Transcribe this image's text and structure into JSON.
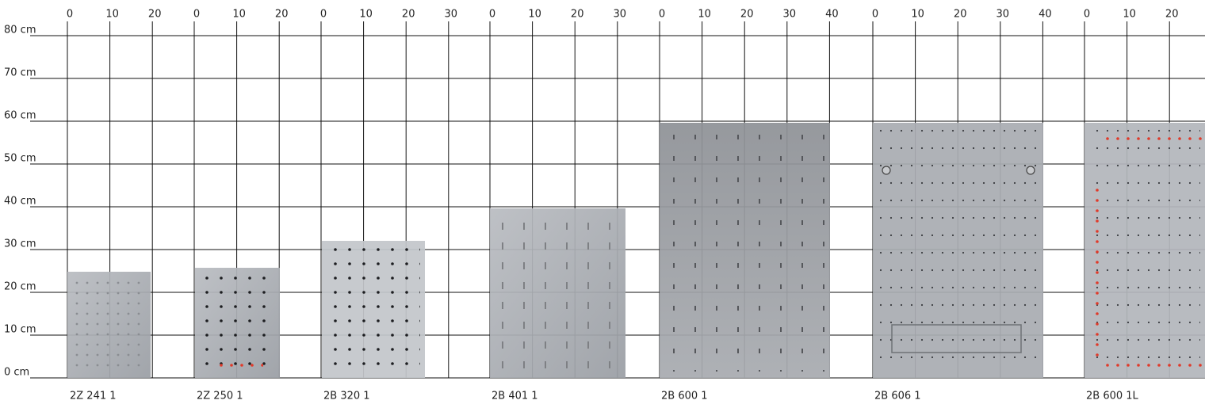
{
  "y_axis": {
    "labels": [
      "0 cm",
      "10 cm",
      "20 cm",
      "30 cm",
      "40 cm",
      "50 cm",
      "60 cm",
      "70 cm",
      "80 cm"
    ]
  },
  "groups": [
    {
      "ticks": [
        0,
        10,
        20
      ],
      "label": "2Z 241 1"
    },
    {
      "ticks": [
        0,
        10,
        20
      ],
      "label": "2Z 250 1"
    },
    {
      "ticks": [
        0,
        10,
        20,
        30
      ],
      "label": "2B 320 1"
    },
    {
      "ticks": [
        0,
        10,
        20,
        30
      ],
      "label": "2B 401 1"
    },
    {
      "ticks": [
        0,
        10,
        20,
        30,
        40
      ],
      "label": "2B 600 1"
    },
    {
      "ticks": [
        0,
        10,
        20,
        30,
        40
      ],
      "label": "2B 606 1"
    },
    {
      "ticks": [
        0,
        10,
        20
      ],
      "label": "2B 600 1L"
    }
  ]
}
